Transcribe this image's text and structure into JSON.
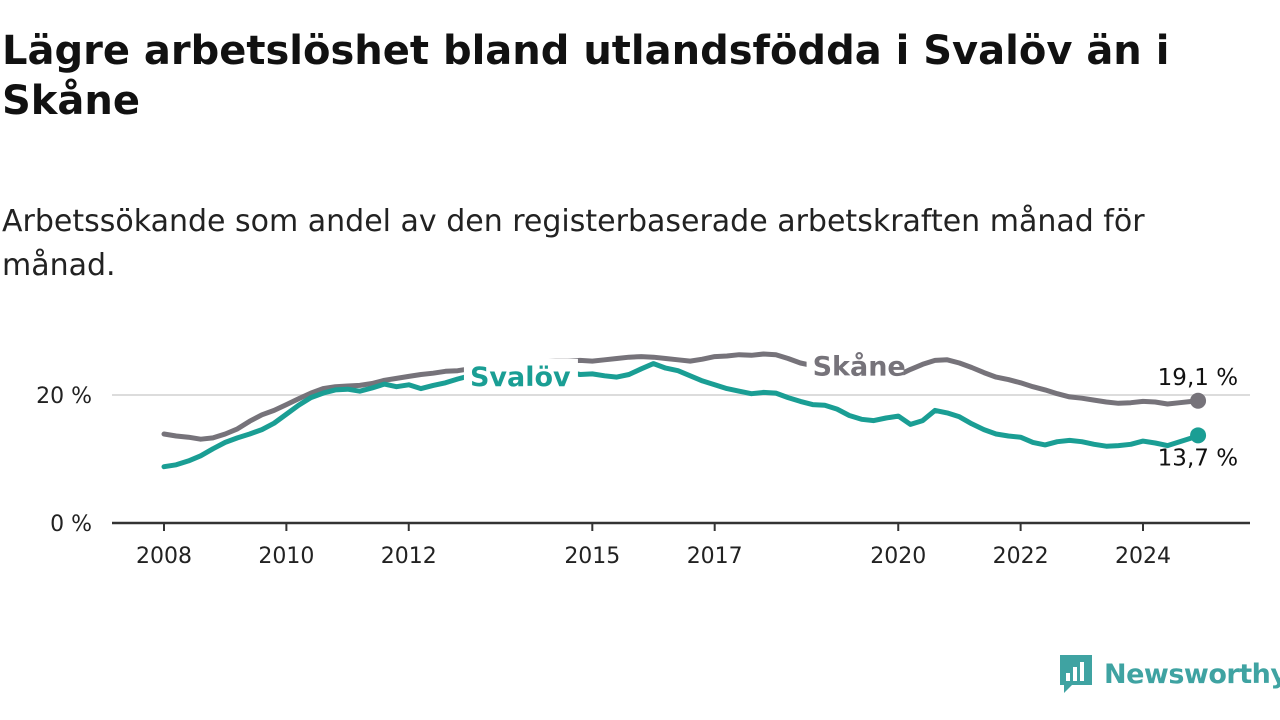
{
  "title": "Lägre arbetslöshet bland utlandsfödda i Svalöv än i Skåne",
  "subtitle": "Arbetssökande som andel av den registerbaserade arbetskraften månad för månad.",
  "brand": {
    "name": "Newsworthy",
    "icon": "bar-chart-speech-bubble-icon",
    "color": "#3fa3a2"
  },
  "chart_data": {
    "type": "line",
    "xlim": [
      2008,
      2025.5
    ],
    "ylim": [
      0,
      26
    ],
    "y_ticks": [
      {
        "value": 0,
        "label": "0 %"
      },
      {
        "value": 20,
        "label": "20 %"
      }
    ],
    "x_ticks": [
      {
        "value": 2008,
        "label": "2008"
      },
      {
        "value": 2010,
        "label": "2010"
      },
      {
        "value": 2012,
        "label": "2012"
      },
      {
        "value": 2015,
        "label": "2015"
      },
      {
        "value": 2017,
        "label": "2017"
      },
      {
        "value": 2020,
        "label": "2020"
      },
      {
        "value": 2022,
        "label": "2022"
      },
      {
        "value": 2024,
        "label": "2024"
      }
    ],
    "grid": "horizontal",
    "series": [
      {
        "name": "Skåne",
        "color": "#76737a",
        "end_label": "19,1 %",
        "points": [
          [
            2008.0,
            13.9
          ],
          [
            2008.2,
            13.6
          ],
          [
            2008.4,
            13.4
          ],
          [
            2008.6,
            13.1
          ],
          [
            2008.8,
            13.3
          ],
          [
            2009.0,
            13.9
          ],
          [
            2009.2,
            14.7
          ],
          [
            2009.4,
            15.9
          ],
          [
            2009.6,
            16.9
          ],
          [
            2009.8,
            17.6
          ],
          [
            2010.0,
            18.5
          ],
          [
            2010.2,
            19.4
          ],
          [
            2010.4,
            20.3
          ],
          [
            2010.6,
            21.0
          ],
          [
            2010.8,
            21.3
          ],
          [
            2011.0,
            21.4
          ],
          [
            2011.2,
            21.5
          ],
          [
            2011.4,
            21.8
          ],
          [
            2011.6,
            22.3
          ],
          [
            2011.8,
            22.6
          ],
          [
            2012.0,
            22.9
          ],
          [
            2012.2,
            23.2
          ],
          [
            2012.4,
            23.4
          ],
          [
            2012.6,
            23.7
          ],
          [
            2012.8,
            23.8
          ],
          [
            2013.0,
            24.1
          ],
          [
            2013.2,
            24.3
          ],
          [
            2013.4,
            24.6
          ],
          [
            2013.6,
            24.8
          ],
          [
            2013.8,
            24.9
          ],
          [
            2014.0,
            25.0
          ],
          [
            2014.2,
            25.2
          ],
          [
            2014.4,
            25.3
          ],
          [
            2014.6,
            25.3
          ],
          [
            2014.8,
            25.4
          ],
          [
            2015.0,
            25.3
          ],
          [
            2015.2,
            25.5
          ],
          [
            2015.4,
            25.7
          ],
          [
            2015.6,
            25.9
          ],
          [
            2015.8,
            26.0
          ],
          [
            2016.0,
            25.9
          ],
          [
            2016.2,
            25.7
          ],
          [
            2016.4,
            25.5
          ],
          [
            2016.6,
            25.3
          ],
          [
            2016.8,
            25.6
          ],
          [
            2017.0,
            26.0
          ],
          [
            2017.2,
            26.1
          ],
          [
            2017.4,
            26.3
          ],
          [
            2017.6,
            26.2
          ],
          [
            2017.8,
            26.4
          ],
          [
            2018.0,
            26.3
          ],
          [
            2018.2,
            25.7
          ],
          [
            2018.4,
            25.0
          ],
          [
            2018.6,
            24.6
          ],
          [
            2018.8,
            24.3
          ],
          [
            2019.0,
            24.0
          ],
          [
            2019.2,
            23.8
          ],
          [
            2019.4,
            23.6
          ],
          [
            2019.6,
            23.4
          ],
          [
            2019.8,
            23.2
          ],
          [
            2020.0,
            23.1
          ],
          [
            2020.2,
            24.0
          ],
          [
            2020.4,
            24.8
          ],
          [
            2020.6,
            25.4
          ],
          [
            2020.8,
            25.5
          ],
          [
            2021.0,
            25.0
          ],
          [
            2021.2,
            24.3
          ],
          [
            2021.4,
            23.5
          ],
          [
            2021.6,
            22.8
          ],
          [
            2021.8,
            22.4
          ],
          [
            2022.0,
            21.9
          ],
          [
            2022.2,
            21.3
          ],
          [
            2022.4,
            20.8
          ],
          [
            2022.6,
            20.2
          ],
          [
            2022.8,
            19.7
          ],
          [
            2023.0,
            19.5
          ],
          [
            2023.2,
            19.2
          ],
          [
            2023.4,
            18.9
          ],
          [
            2023.6,
            18.7
          ],
          [
            2023.8,
            18.8
          ],
          [
            2024.0,
            19.0
          ],
          [
            2024.2,
            18.9
          ],
          [
            2024.4,
            18.6
          ],
          [
            2024.6,
            18.8
          ],
          [
            2024.8,
            19.0
          ],
          [
            2024.9,
            19.1
          ]
        ]
      },
      {
        "name": "Svalöv",
        "color": "#1a9e94",
        "end_label": "13,7 %",
        "points": [
          [
            2008.0,
            8.8
          ],
          [
            2008.2,
            9.1
          ],
          [
            2008.4,
            9.7
          ],
          [
            2008.6,
            10.5
          ],
          [
            2008.8,
            11.6
          ],
          [
            2009.0,
            12.6
          ],
          [
            2009.2,
            13.3
          ],
          [
            2009.4,
            13.9
          ],
          [
            2009.6,
            14.6
          ],
          [
            2009.8,
            15.6
          ],
          [
            2010.0,
            17.0
          ],
          [
            2010.2,
            18.4
          ],
          [
            2010.4,
            19.6
          ],
          [
            2010.6,
            20.3
          ],
          [
            2010.8,
            20.8
          ],
          [
            2011.0,
            20.9
          ],
          [
            2011.2,
            20.6
          ],
          [
            2011.4,
            21.1
          ],
          [
            2011.6,
            21.7
          ],
          [
            2011.8,
            21.3
          ],
          [
            2012.0,
            21.6
          ],
          [
            2012.2,
            21.0
          ],
          [
            2012.4,
            21.5
          ],
          [
            2012.6,
            21.9
          ],
          [
            2012.8,
            22.5
          ],
          [
            2013.0,
            23.0
          ],
          [
            2013.2,
            23.4
          ],
          [
            2013.4,
            23.6
          ],
          [
            2013.6,
            23.5
          ],
          [
            2013.8,
            23.7
          ],
          [
            2014.0,
            23.8
          ],
          [
            2014.2,
            23.9
          ],
          [
            2014.4,
            24.0
          ],
          [
            2014.6,
            23.6
          ],
          [
            2014.8,
            23.2
          ],
          [
            2015.0,
            23.3
          ],
          [
            2015.2,
            23.0
          ],
          [
            2015.4,
            22.8
          ],
          [
            2015.6,
            23.2
          ],
          [
            2015.8,
            24.1
          ],
          [
            2016.0,
            24.9
          ],
          [
            2016.2,
            24.2
          ],
          [
            2016.4,
            23.8
          ],
          [
            2016.6,
            23.0
          ],
          [
            2016.8,
            22.2
          ],
          [
            2017.0,
            21.6
          ],
          [
            2017.2,
            21.0
          ],
          [
            2017.4,
            20.6
          ],
          [
            2017.6,
            20.2
          ],
          [
            2017.8,
            20.4
          ],
          [
            2018.0,
            20.3
          ],
          [
            2018.2,
            19.6
          ],
          [
            2018.4,
            19.0
          ],
          [
            2018.6,
            18.5
          ],
          [
            2018.8,
            18.4
          ],
          [
            2019.0,
            17.8
          ],
          [
            2019.2,
            16.8
          ],
          [
            2019.4,
            16.2
          ],
          [
            2019.6,
            16.0
          ],
          [
            2019.8,
            16.4
          ],
          [
            2020.0,
            16.7
          ],
          [
            2020.2,
            15.4
          ],
          [
            2020.4,
            16.0
          ],
          [
            2020.6,
            17.6
          ],
          [
            2020.8,
            17.2
          ],
          [
            2021.0,
            16.6
          ],
          [
            2021.2,
            15.5
          ],
          [
            2021.4,
            14.6
          ],
          [
            2021.6,
            13.9
          ],
          [
            2021.8,
            13.6
          ],
          [
            2022.0,
            13.4
          ],
          [
            2022.2,
            12.6
          ],
          [
            2022.4,
            12.2
          ],
          [
            2022.6,
            12.7
          ],
          [
            2022.8,
            12.9
          ],
          [
            2023.0,
            12.7
          ],
          [
            2023.2,
            12.3
          ],
          [
            2023.4,
            12.0
          ],
          [
            2023.6,
            12.1
          ],
          [
            2023.8,
            12.3
          ],
          [
            2024.0,
            12.8
          ],
          [
            2024.2,
            12.5
          ],
          [
            2024.4,
            12.1
          ],
          [
            2024.6,
            12.7
          ],
          [
            2024.8,
            13.3
          ],
          [
            2024.9,
            13.7
          ]
        ]
      }
    ]
  }
}
